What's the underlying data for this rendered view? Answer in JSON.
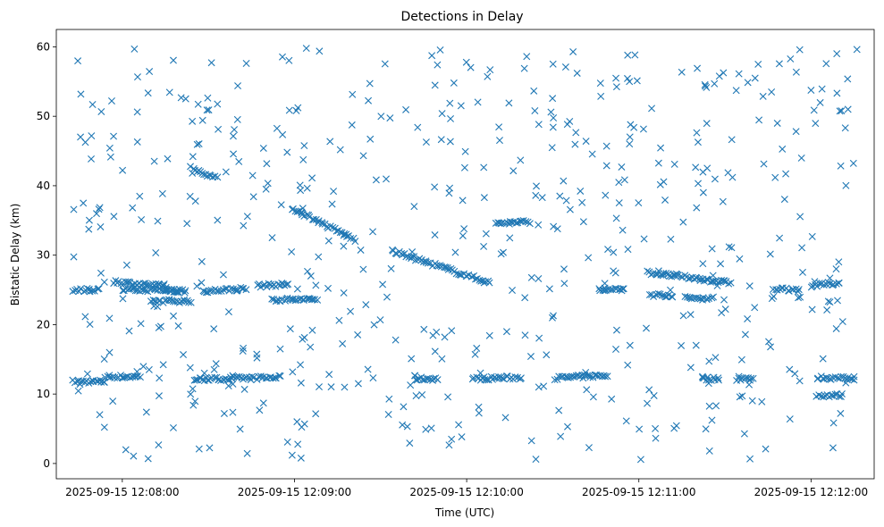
{
  "chart_data": {
    "type": "scatter",
    "title": "Detections in Delay",
    "xlabel": "Time (UTC)",
    "ylabel": "Bistatic Delay (km)",
    "x_unit": "seconds after 12:07:00",
    "xlim": [
      "2025-09-15 12:07:37",
      "2025-09-15 12:12:22"
    ],
    "ylim": [
      -2.2,
      62.5
    ],
    "marker": "x",
    "color": "#1f77b4",
    "grid": false,
    "x_ticks": [
      {
        "t": 60,
        "label": "2025-09-15 12:08:00"
      },
      {
        "t": 120,
        "label": "2025-09-15 12:09:00"
      },
      {
        "t": 180,
        "label": "2025-09-15 12:10:00"
      },
      {
        "t": 240,
        "label": "2025-09-15 12:11:00"
      },
      {
        "t": 300,
        "label": "2025-09-15 12:12:00"
      }
    ],
    "y_ticks": [
      0,
      10,
      20,
      30,
      40,
      50,
      60
    ],
    "tracks": [
      {
        "t_start": 43,
        "t_end": 54,
        "y_start": 11.8,
        "y_end": 11.8
      },
      {
        "t_start": 54,
        "t_end": 66,
        "y_start": 12.5,
        "y_end": 12.5
      },
      {
        "t_start": 85,
        "t_end": 115,
        "y_start": 12.1,
        "y_end": 12.4
      },
      {
        "t_start": 162,
        "t_end": 170,
        "y_start": 12.2,
        "y_end": 12.2
      },
      {
        "t_start": 182,
        "t_end": 199,
        "y_start": 12.2,
        "y_end": 12.4
      },
      {
        "t_start": 211,
        "t_end": 229,
        "y_start": 12.3,
        "y_end": 12.7
      },
      {
        "t_start": 262,
        "t_end": 268,
        "y_start": 12.2,
        "y_end": 12.2
      },
      {
        "t_start": 274,
        "t_end": 280,
        "y_start": 12.2,
        "y_end": 12.2
      },
      {
        "t_start": 302,
        "t_end": 311,
        "y_start": 9.8,
        "y_end": 9.8
      },
      {
        "t_start": 302,
        "t_end": 315,
        "y_start": 12.4,
        "y_end": 12.2
      },
      {
        "t_start": 43,
        "t_end": 52,
        "y_start": 25,
        "y_end": 25
      },
      {
        "t_start": 60,
        "t_end": 80,
        "y_start": 25,
        "y_end": 25
      },
      {
        "t_start": 88,
        "t_end": 103,
        "y_start": 24.8,
        "y_end": 25.2
      },
      {
        "t_start": 107,
        "t_end": 118,
        "y_start": 25.6,
        "y_end": 25.8
      },
      {
        "t_start": 226,
        "t_end": 235,
        "y_start": 25,
        "y_end": 25
      },
      {
        "t_start": 287,
        "t_end": 296,
        "y_start": 25.2,
        "y_end": 25
      },
      {
        "t_start": 300,
        "t_end": 310,
        "y_start": 25.6,
        "y_end": 26
      },
      {
        "t_start": 57,
        "t_end": 75,
        "y_start": 26.2,
        "y_end": 25.5
      },
      {
        "t_start": 70,
        "t_end": 84,
        "y_start": 23.4,
        "y_end": 23.4
      },
      {
        "t_start": 75,
        "t_end": 82,
        "y_start": 24.8,
        "y_end": 24.8
      },
      {
        "t_start": 112,
        "t_end": 128,
        "y_start": 23.6,
        "y_end": 23.6
      },
      {
        "t_start": 244,
        "t_end": 252,
        "y_start": 24.3,
        "y_end": 24.2
      },
      {
        "t_start": 256,
        "t_end": 266,
        "y_start": 23.8,
        "y_end": 23.8
      },
      {
        "t_start": 84,
        "t_end": 93,
        "y_start": 42.6,
        "y_end": 41
      },
      {
        "t_start": 119,
        "t_end": 141,
        "y_start": 36.8,
        "y_end": 32.2
      },
      {
        "t_start": 154,
        "t_end": 188,
        "y_start": 30.6,
        "y_end": 26
      },
      {
        "t_start": 190,
        "t_end": 202,
        "y_start": 34.6,
        "y_end": 34.8
      },
      {
        "t_start": 243,
        "t_end": 272,
        "y_start": 27.5,
        "y_end": 26
      }
    ],
    "scatter_seed": 7,
    "random_points": 560
  }
}
